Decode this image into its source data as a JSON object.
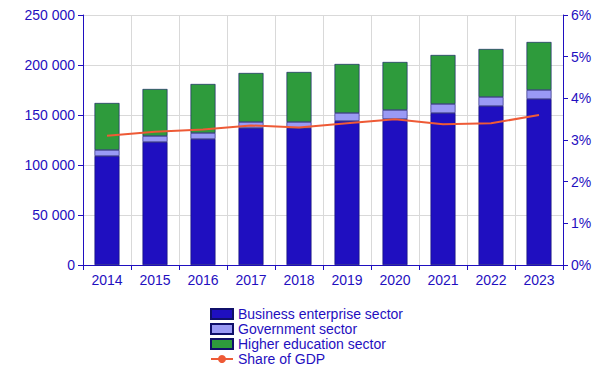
{
  "chart_data": {
    "type": "bar",
    "stacked": true,
    "grid": true,
    "legend": "bottom",
    "categories": [
      "2014",
      "2015",
      "2016",
      "2017",
      "2018",
      "2019",
      "2020",
      "2021",
      "2022",
      "2023"
    ],
    "series": [
      {
        "name": "Business enterprise sector",
        "color": "#1f0fc0",
        "type": "bar",
        "values": [
          109000,
          123000,
          126000,
          137000,
          137000,
          144000,
          146000,
          152000,
          159000,
          166000
        ]
      },
      {
        "name": "Government sector",
        "color": "#9a9af5",
        "type": "bar",
        "values": [
          6000,
          6000,
          6000,
          6000,
          6000,
          8000,
          9000,
          9000,
          9000,
          9000
        ]
      },
      {
        "name": "Higher education sector",
        "color": "#2e9b3c",
        "type": "bar",
        "values": [
          47000,
          47000,
          49000,
          49000,
          50000,
          49000,
          48000,
          49000,
          48000,
          48000
        ]
      },
      {
        "name": "Share of GDP",
        "color": "#ee5a36",
        "type": "line",
        "axis": "y2",
        "values": [
          3.1,
          3.2,
          3.25,
          3.35,
          3.3,
          3.4,
          3.5,
          3.38,
          3.4,
          3.6
        ]
      }
    ],
    "ylim": [
      0,
      250000
    ],
    "yticks": [
      0,
      {
        "value": 50000,
        "label": "50 000"
      },
      {
        "value": 100000,
        "label": "100 000"
      },
      {
        "value": 150000,
        "label": "150 000"
      },
      {
        "value": 200000,
        "label": "200 000"
      },
      {
        "value": 250000,
        "label": "250 000"
      }
    ],
    "y2lim": [
      0,
      6
    ],
    "y2ticks": [
      {
        "value": 0,
        "label": "0%"
      },
      {
        "value": 1,
        "label": "1%"
      },
      {
        "value": 2,
        "label": "2%"
      },
      {
        "value": 3,
        "label": "3%"
      },
      {
        "value": 4,
        "label": "4%"
      },
      {
        "value": 5,
        "label": "5%"
      },
      {
        "value": 6,
        "label": "6%"
      }
    ]
  }
}
